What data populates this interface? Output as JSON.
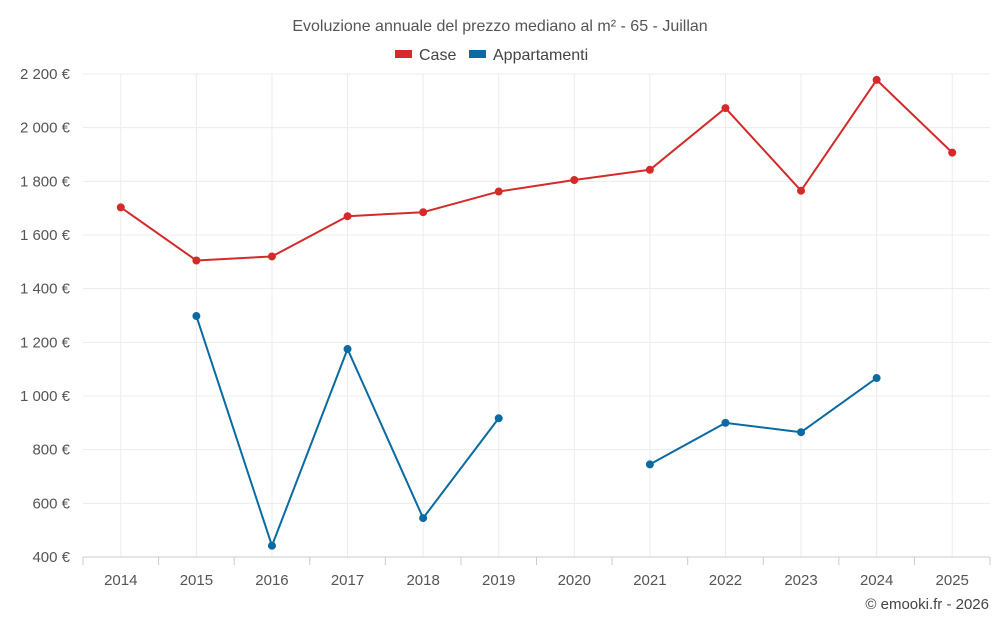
{
  "chart_data": {
    "type": "line",
    "title": "Evoluzione annuale del prezzo mediano al m² - 65 - Juillan",
    "xlabel": "",
    "ylabel": "",
    "categories": [
      "2014",
      "2015",
      "2016",
      "2017",
      "2018",
      "2019",
      "2020",
      "2021",
      "2022",
      "2023",
      "2024",
      "2025"
    ],
    "ylim": [
      400,
      2200
    ],
    "yticks": [
      400,
      600,
      800,
      1000,
      1200,
      1400,
      1600,
      1800,
      2000,
      2200
    ],
    "ytick_labels": [
      "400 €",
      "600 €",
      "800 €",
      "1 000 €",
      "1 200 €",
      "1 400 €",
      "1 600 €",
      "1 800 €",
      "2 000 €",
      "2 200 €"
    ],
    "grid": true,
    "legend_position": "top-center",
    "series": [
      {
        "name": "Case",
        "color": "#d42a2a",
        "values": [
          1703,
          1505,
          1520,
          1670,
          1685,
          1762,
          1805,
          1843,
          2073,
          1765,
          2178,
          1907
        ]
      },
      {
        "name": "Appartamenti",
        "color": "#0a6aa1",
        "values": [
          null,
          1298,
          442,
          1175,
          545,
          917,
          null,
          745,
          900,
          865,
          1067,
          null
        ]
      }
    ],
    "credit": "© emooki.fr - 2026"
  }
}
